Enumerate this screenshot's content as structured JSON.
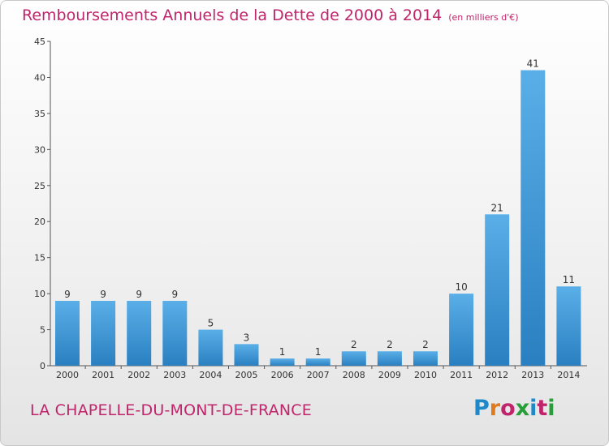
{
  "header": {
    "title": "Remboursements Annuels de la Dette de 2000 à 2014",
    "unit": "(en milliers d'€)"
  },
  "footer": {
    "commune": "LA CHAPELLE-DU-MONT-DE-FRANCE",
    "logo": "Proxiti"
  },
  "colors": {
    "title": "#c0246b",
    "bar_light": "#5aafe8",
    "bar_dark": "#2a7fc0",
    "logo": [
      "#1e88c8",
      "#e07a1a",
      "#c0246b",
      "#2a9d3a",
      "#1e88c8",
      "#c0246b",
      "#2a9d3a"
    ]
  },
  "chart_data": {
    "type": "bar",
    "categories": [
      "2000",
      "2001",
      "2002",
      "2003",
      "2004",
      "2005",
      "2006",
      "2007",
      "2008",
      "2009",
      "2010",
      "2011",
      "2012",
      "2013",
      "2014"
    ],
    "values": [
      9,
      9,
      9,
      9,
      5,
      3,
      1,
      1,
      2,
      2,
      2,
      10,
      21,
      41,
      11
    ],
    "ylim": [
      0,
      45
    ],
    "yticks": [
      0,
      5,
      10,
      15,
      20,
      25,
      30,
      35,
      40,
      45
    ],
    "grid": false,
    "legend": "none"
  }
}
